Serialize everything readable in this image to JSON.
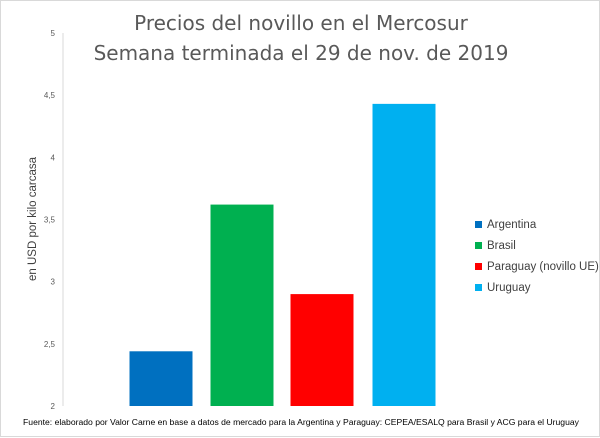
{
  "chart_data": {
    "type": "bar",
    "title": "Precios del novillo en el Mercosur",
    "subtitle": "Semana terminada el 29 de nov. de 2019",
    "ylabel": "en USD por kilo carcasa",
    "xlabel": "",
    "ylim": [
      2,
      5
    ],
    "yticks": [
      "2",
      "2,5",
      "3",
      "3,5",
      "4",
      "4,5",
      "5"
    ],
    "grid": false,
    "legend_position": "right",
    "categories": [
      "Argentina",
      "Brasil",
      "Paraguay (novillo UE)",
      "Uruguay"
    ],
    "values": [
      2.44,
      3.62,
      2.9,
      4.43
    ],
    "colors": [
      "#0070C0",
      "#00B050",
      "#FF0000",
      "#00B0F0"
    ],
    "source": "Fuente: elaborado por Valor Carne en base a datos de mercado para la Argentina y Paraguay: CEPEA/ESALQ para Brasil y ACG para el Uruguay"
  }
}
